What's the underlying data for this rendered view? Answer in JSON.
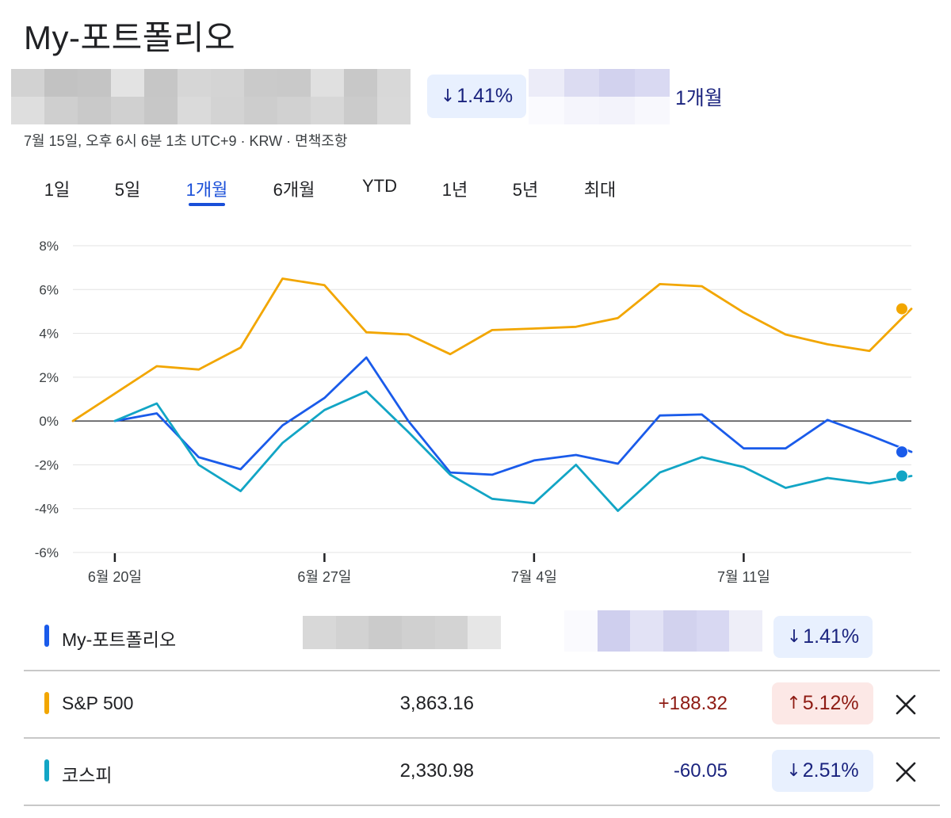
{
  "page": {
    "title": "My-포트폴리오",
    "summary_change_pct": "1.41%",
    "summary_direction": "down",
    "period_label": "1개월",
    "meta": "7월 15일, 오후 6시 6분 1초 UTC+9 · KRW · 면책조항"
  },
  "tabs": [
    {
      "label": "1일",
      "active": false
    },
    {
      "label": "5일",
      "active": false
    },
    {
      "label": "1개월",
      "active": true
    },
    {
      "label": "6개월",
      "active": false
    },
    {
      "label": "YTD",
      "active": false
    },
    {
      "label": "1년",
      "active": false
    },
    {
      "label": "5년",
      "active": false
    },
    {
      "label": "최대",
      "active": false
    }
  ],
  "chart_data": {
    "type": "line",
    "title": "",
    "xlabel": "",
    "ylabel": "",
    "ylim": [
      -6,
      8
    ],
    "y_ticks": [
      8,
      6,
      4,
      2,
      0,
      -2,
      -4,
      -6
    ],
    "y_tick_labels": [
      "8%",
      "6%",
      "4%",
      "2%",
      "0%",
      "-2%",
      "-4%",
      "-6%"
    ],
    "x_tick_labels": [
      {
        "label": "6월 20일",
        "index": 1
      },
      {
        "label": "6월 27일",
        "index": 6
      },
      {
        "label": "7월 4일",
        "index": 11
      },
      {
        "label": "7월 11일",
        "index": 16
      }
    ],
    "x_count": 21,
    "grid": true,
    "series": [
      {
        "name": "S&P 500",
        "color": "#f2a600",
        "x": [
          0,
          1,
          2,
          3,
          4,
          5,
          6,
          7,
          8,
          9,
          10,
          11,
          12,
          13,
          14,
          15,
          16,
          17,
          18,
          19,
          20
        ],
        "values": [
          0,
          1.25,
          2.5,
          2.35,
          3.35,
          6.5,
          6.2,
          4.05,
          3.95,
          3.05,
          4.15,
          4.22,
          4.3,
          4.7,
          6.25,
          6.15,
          4.95,
          3.95,
          3.5,
          3.2,
          5.12
        ]
      },
      {
        "name": "My-포트폴리오",
        "color": "#1a5bea",
        "x": [
          1,
          2,
          3,
          4,
          5,
          6,
          7,
          8,
          9,
          10,
          11,
          12,
          13,
          14,
          15,
          16,
          17,
          18,
          19,
          20
        ],
        "values": [
          0,
          0.35,
          -1.65,
          -2.2,
          -0.2,
          1.05,
          2.9,
          0,
          -2.35,
          -2.45,
          -1.8,
          -1.55,
          -1.95,
          0.25,
          0.3,
          -1.25,
          -1.25,
          0.05,
          -0.65,
          -1.41
        ]
      },
      {
        "name": "코스피",
        "color": "#12a5c5",
        "x": [
          1,
          2,
          3,
          4,
          5,
          6,
          7,
          8,
          9,
          10,
          11,
          12,
          13,
          14,
          15,
          16,
          17,
          18,
          19,
          20
        ],
        "values": [
          0,
          0.8,
          -2.0,
          -3.2,
          -1.0,
          0.5,
          1.35,
          -0.5,
          -2.45,
          -3.55,
          -3.75,
          -2.0,
          -4.1,
          -2.35,
          -1.65,
          -2.1,
          -3.05,
          -2.6,
          -2.85,
          -2.51
        ]
      }
    ]
  },
  "rows": [
    {
      "name": "My-포트폴리오",
      "color": "#1a5bea",
      "price": "",
      "change": "",
      "pct": "1.41%",
      "direction": "down",
      "removable": false
    },
    {
      "name": "S&P 500",
      "color": "#f2a600",
      "price": "3,863.16",
      "change": "+188.32",
      "pct": "5.12%",
      "direction": "up",
      "removable": true
    },
    {
      "name": "코스피",
      "color": "#12a5c5",
      "price": "2,330.98",
      "change": "-60.05",
      "pct": "2.51%",
      "direction": "down",
      "removable": true
    }
  ],
  "colors": {
    "up_text": "#8e1b13",
    "down_text": "#1a237e",
    "active_tab": "#1a4fd8"
  }
}
